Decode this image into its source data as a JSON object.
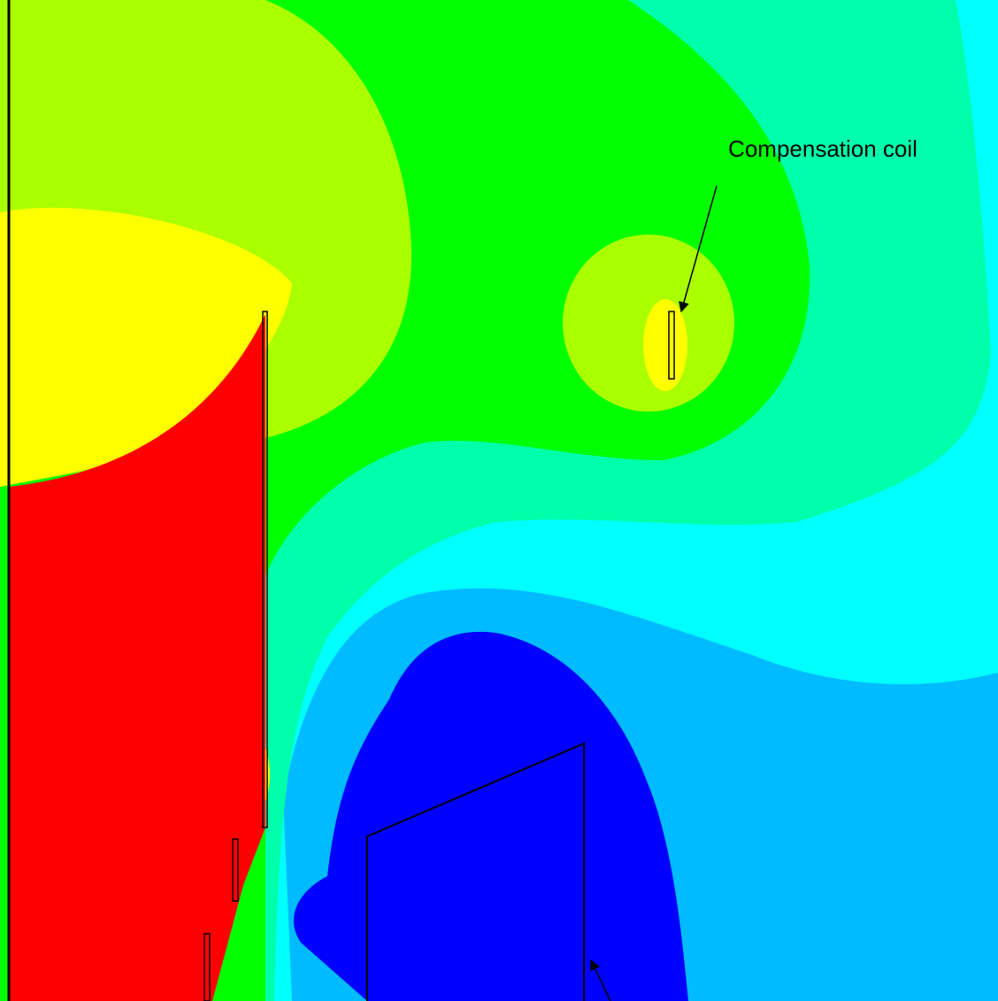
{
  "annotations": [
    {
      "label": "Compensation coil"
    }
  ]
}
